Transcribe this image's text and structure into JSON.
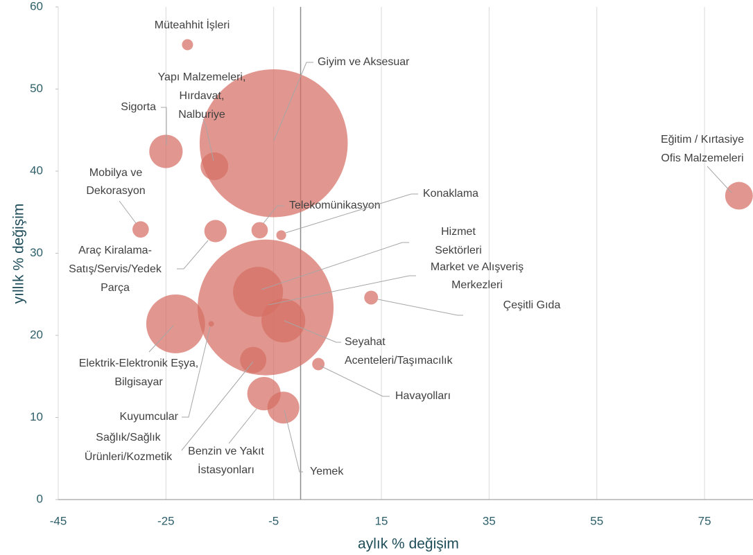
{
  "chart_data": {
    "type": "bubble",
    "xlabel": "aylık % değişim",
    "ylabel": "yıllık % değişim",
    "xlim": [
      -45,
      84
    ],
    "ylim": [
      0,
      60
    ],
    "xticks": [
      -45,
      -25,
      -5,
      15,
      35,
      55,
      75
    ],
    "yticks": [
      0,
      10,
      20,
      30,
      40,
      50,
      60
    ],
    "grid": true,
    "color": "#d56f64",
    "points": [
      {
        "label": [
          "Müteahhit İşleri"
        ],
        "x": -21.0,
        "y": 55.4,
        "size": 0.64
      },
      {
        "label": [
          "Giyim ve Aksesuar"
        ],
        "x": -5.0,
        "y": 43.4,
        "size": 114
      },
      {
        "label": [
          "Yapı Malzemeleri,",
          "Hırdavat,",
          "Nalburiye"
        ],
        "x": -16.0,
        "y": 40.6,
        "size": 4.0
      },
      {
        "label": [
          "Sigorta"
        ],
        "x": -25.0,
        "y": 42.4,
        "size": 5.8
      },
      {
        "label": [
          "Eğitim / Kırtasiye",
          "Ofis Malzemeleri"
        ],
        "x": 81.4,
        "y": 37.0,
        "size": 4.0
      },
      {
        "label": [
          "Mobilya ve",
          "Dekorasyon"
        ],
        "x": -29.7,
        "y": 32.9,
        "size": 1.4
      },
      {
        "label": [
          "Araç Kiralama-",
          "Satış/Servis/Yedek",
          "Parça"
        ],
        "x": -15.8,
        "y": 32.7,
        "size": 2.6
      },
      {
        "label": [
          "Telekomünikasyon"
        ],
        "x": -7.6,
        "y": 32.8,
        "size": 1.4
      },
      {
        "label": [
          "Konaklama"
        ],
        "x": -3.6,
        "y": 32.2,
        "size": 0.5
      },
      {
        "label": [
          "Hizmet",
          "Sektörleri"
        ],
        "x": -7.9,
        "y": 25.3,
        "size": 13
      },
      {
        "label": [
          "Market ve Alışveriş",
          "Merkezleri"
        ],
        "x": -6.5,
        "y": 23.4,
        "size": 96
      },
      {
        "label": [
          "Çeşitli Gıda"
        ],
        "x": -3.2,
        "y": 21.8,
        "size": 10
      },
      {
        "label": [
          "Seyahat",
          "Acenteleri/Taşımacılık"
        ],
        "x": 13.1,
        "y": 24.6,
        "size": 1.0
      },
      {
        "label": [
          "Elektrik-Elektronik Eşya,",
          "Bilgisayar"
        ],
        "x": -23.2,
        "y": 21.4,
        "size": 18
      },
      {
        "label": [
          "Kuyumcular"
        ],
        "x": -16.6,
        "y": 21.4,
        "size": 0.16
      },
      {
        "label": [
          "Havayolları"
        ],
        "x": 3.3,
        "y": 16.5,
        "size": 0.8
      },
      {
        "label": [
          "Sağlık/Sağlık",
          "Ürünleri/Kozmetik"
        ],
        "x": -8.8,
        "y": 17.0,
        "size": 3.6
      },
      {
        "label": [
          "Benzin ve Yakıt",
          "İstasyonları"
        ],
        "x": -6.8,
        "y": 12.9,
        "size": 5.8
      },
      {
        "label": [
          "Yemek"
        ],
        "x": -3.2,
        "y": 11.2,
        "size": 5.3
      }
    ]
  }
}
